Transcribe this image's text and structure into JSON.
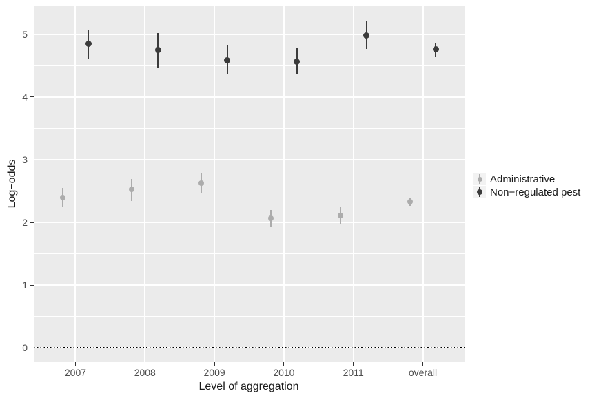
{
  "chart_data": {
    "type": "pointrange",
    "title": "",
    "xlabel": "Level of aggregation",
    "ylabel": "Log−odds",
    "categories": [
      "2007",
      "2008",
      "2009",
      "2010",
      "2011",
      "overall"
    ],
    "y_ticks": [
      "0",
      "1",
      "2",
      "3",
      "4",
      "5"
    ],
    "y_tick_values": [
      0,
      1,
      2,
      3,
      4,
      5
    ],
    "y_minor_values": [
      0.5,
      1.5,
      2.5,
      3.5,
      4.5
    ],
    "ylim": [
      -0.23,
      5.45
    ],
    "grid": {
      "horizontal_major": true,
      "horizontal_minor": true,
      "vertical_major": true
    },
    "reference_line": {
      "y": 0,
      "style": "dotted",
      "color": "#000000"
    },
    "legend_position": "right",
    "series": [
      {
        "name": "Administrative",
        "color": "#ACACAC",
        "points": [
          {
            "x": "2007",
            "y": 2.4,
            "ymin": 2.24,
            "ymax": 2.55
          },
          {
            "x": "2008",
            "y": 2.53,
            "ymin": 2.34,
            "ymax": 2.69
          },
          {
            "x": "2009",
            "y": 2.63,
            "ymin": 2.47,
            "ymax": 2.78
          },
          {
            "x": "2010",
            "y": 2.07,
            "ymin": 1.93,
            "ymax": 2.2
          },
          {
            "x": "2011",
            "y": 2.11,
            "ymin": 1.98,
            "ymax": 2.24
          },
          {
            "x": "overall",
            "y": 2.33,
            "ymin": 2.26,
            "ymax": 2.4
          }
        ]
      },
      {
        "name": "Non−regulated pest",
        "color": "#3B3B3B",
        "points": [
          {
            "x": "2007",
            "y": 4.85,
            "ymin": 4.62,
            "ymax": 5.08
          },
          {
            "x": "2008",
            "y": 4.75,
            "ymin": 4.46,
            "ymax": 5.02
          },
          {
            "x": "2009",
            "y": 4.59,
            "ymin": 4.36,
            "ymax": 4.82
          },
          {
            "x": "2010",
            "y": 4.57,
            "ymin": 4.36,
            "ymax": 4.79
          },
          {
            "x": "2011",
            "y": 4.98,
            "ymin": 4.77,
            "ymax": 5.21
          },
          {
            "x": "overall",
            "y": 4.76,
            "ymin": 4.64,
            "ymax": 4.87
          }
        ]
      }
    ],
    "colors": {
      "panel_bg": "#EBEBEB",
      "gridline": "#FFFFFF",
      "legend_key_bg": "#F2F2F2",
      "axis_text": "#4D4D4D",
      "title_text": "#1A1A1A",
      "tick_mark": "#333333"
    }
  }
}
